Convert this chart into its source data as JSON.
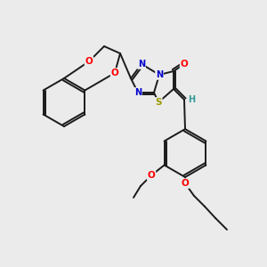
{
  "bg_color": "#ebebeb",
  "bond_color": "#1a1a1a",
  "atom_colors": {
    "O": "#ff0000",
    "N": "#0000cc",
    "S": "#999900",
    "H": "#339999",
    "C": "#1a1a1a"
  },
  "figsize": [
    3.0,
    3.0
  ],
  "dpi": 100,
  "lw": 1.4
}
